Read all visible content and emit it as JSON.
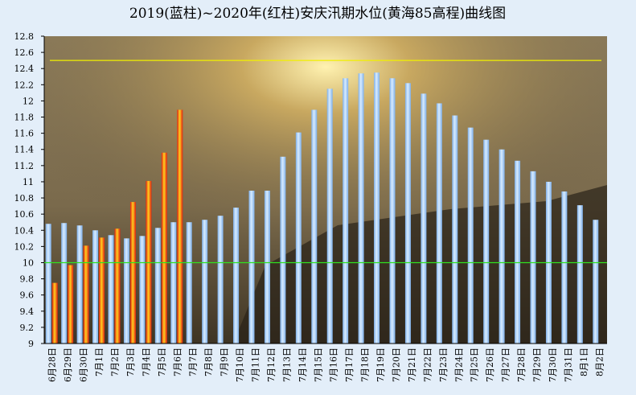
{
  "chart_data": {
    "type": "bar",
    "title": "2019(蓝柱)~2020年(红柱)安庆汛期水位(黄海85高程)曲线图",
    "categories": [
      "6月28日",
      "6月29日",
      "6月30日",
      "7月1日",
      "7月2日",
      "7月3日",
      "7月4日",
      "7月5日",
      "7月6日",
      "7月7日",
      "7月8日",
      "7月9日",
      "7月10日",
      "7月11日",
      "7月12日",
      "7月13日",
      "7月14日",
      "7月15日",
      "7月16日",
      "7月17日",
      "7月18日",
      "7月19日",
      "7月20日",
      "7月21日",
      "7月22日",
      "7月23日",
      "7月24日",
      "7月25日",
      "7月26日",
      "7月27日",
      "7月28日",
      "7月29日",
      "7月30日",
      "7月31日",
      "8月1日",
      "8月2日"
    ],
    "series": [
      {
        "name": "2019",
        "color": "#7fb0ea",
        "values": [
          10.48,
          10.49,
          10.46,
          10.4,
          10.34,
          10.3,
          10.33,
          10.43,
          10.5,
          10.5,
          10.53,
          10.58,
          10.68,
          10.89,
          10.89,
          11.31,
          11.61,
          11.89,
          12.15,
          12.28,
          12.34,
          12.35,
          12.28,
          12.22,
          12.09,
          11.97,
          11.82,
          11.67,
          11.52,
          11.4,
          11.26,
          11.13,
          11.0,
          10.88,
          10.71,
          10.53
        ]
      },
      {
        "name": "2020",
        "color": "#e02010",
        "values": [
          9.75,
          9.97,
          10.21,
          10.31,
          10.42,
          10.75,
          11.01,
          11.36,
          11.89,
          null,
          null,
          null,
          null,
          null,
          null,
          null,
          null,
          null,
          null,
          null,
          null,
          null,
          null,
          null,
          null,
          null,
          null,
          null,
          null,
          null,
          null,
          null,
          null,
          null,
          null,
          null
        ]
      }
    ],
    "reference_lines": [
      {
        "value": 12.5,
        "color": "#f0f000"
      },
      {
        "value": 10,
        "color": "#30e020"
      }
    ],
    "ylim": [
      9,
      12.8
    ],
    "yticks": [
      9,
      9.2,
      9.4,
      9.6,
      9.8,
      10,
      10.2,
      10.4,
      10.6,
      10.8,
      11,
      11.2,
      11.4,
      11.6,
      11.8,
      12,
      12.2,
      12.4,
      12.6,
      12.8
    ],
    "grid": false
  }
}
